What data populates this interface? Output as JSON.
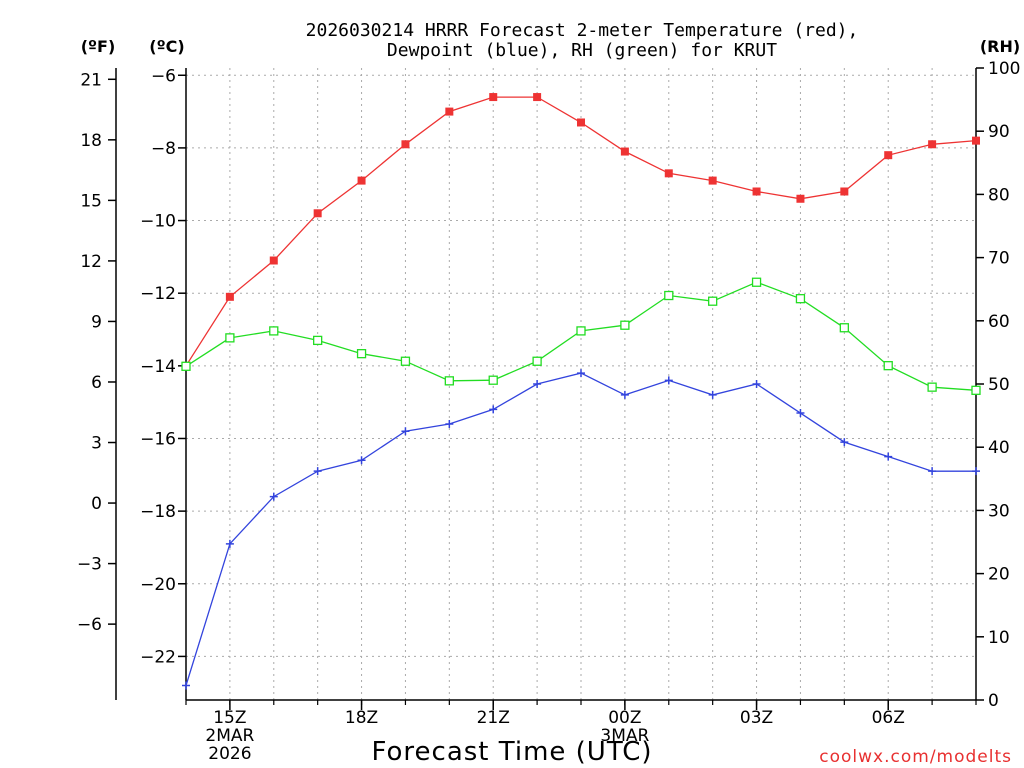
{
  "chart_data": {
    "type": "line",
    "title_line1": "2026030214 HRRR Forecast 2-meter Temperature (red),",
    "title_line2": "Dewpoint (blue), RH (green) for KRUT",
    "xlabel": "Forecast Time (UTC)",
    "credit": "coolwx.com/modelts",
    "unit_left_f": "(ºF)",
    "unit_left_c": "(ºC)",
    "unit_right": "(RH)",
    "x_hours": [
      14,
      15,
      16,
      17,
      18,
      19,
      20,
      21,
      22,
      23,
      24,
      25,
      26,
      27,
      28,
      29,
      30,
      31,
      32
    ],
    "x_range": [
      14,
      32
    ],
    "x_ticks": [
      {
        "hour": 15,
        "label": "15Z",
        "sub1": "2MAR",
        "sub2": "2026"
      },
      {
        "hour": 18,
        "label": "18Z",
        "sub1": "",
        "sub2": ""
      },
      {
        "hour": 21,
        "label": "21Z",
        "sub1": "",
        "sub2": ""
      },
      {
        "hour": 24,
        "label": "00Z",
        "sub1": "3MAR",
        "sub2": ""
      },
      {
        "hour": 27,
        "label": "03Z",
        "sub1": "",
        "sub2": ""
      },
      {
        "hour": 30,
        "label": "06Z",
        "sub1": "",
        "sub2": ""
      }
    ],
    "y_c_range": [
      -23.2,
      -5.8
    ],
    "y_c_ticks": [
      -6,
      -8,
      -10,
      -12,
      -14,
      -16,
      -18,
      -20,
      -22
    ],
    "y_c_tick_labels": [
      "−6",
      "−8",
      "−10",
      "−12",
      "−14",
      "−16",
      "−18",
      "−20",
      "−22"
    ],
    "y_f_ticks": [
      21,
      18,
      15,
      12,
      9,
      6,
      3,
      0,
      -3,
      -6
    ],
    "y_f_tick_labels": [
      "21",
      "18",
      "15",
      "12",
      "9",
      "6",
      "3",
      "0",
      "−3",
      "−6"
    ],
    "y_rh_range": [
      0,
      100
    ],
    "y_rh_ticks": [
      0,
      10,
      20,
      30,
      40,
      50,
      60,
      70,
      80,
      90,
      100
    ],
    "y_rh_tick_labels": [
      "0",
      "10",
      "20",
      "30",
      "40",
      "50",
      "60",
      "70",
      "80",
      "90",
      "100"
    ],
    "series": [
      {
        "name": "Temperature",
        "color": "#ee3333",
        "marker": "filled-square",
        "axis": "celsius",
        "values": [
          -14.0,
          -12.1,
          -11.1,
          -9.8,
          -8.9,
          -7.9,
          -7.0,
          -6.6,
          -6.6,
          -7.3,
          -8.1,
          -8.7,
          -8.9,
          -9.2,
          -9.4,
          -9.2,
          -8.2,
          -7.9,
          -7.8
        ]
      },
      {
        "name": "Dewpoint",
        "color": "#3344dd",
        "marker": "plus",
        "axis": "celsius",
        "values": [
          -22.8,
          -18.9,
          -17.6,
          -16.9,
          -16.6,
          -15.8,
          -15.6,
          -15.2,
          -14.5,
          -14.2,
          -14.8,
          -14.4,
          -14.8,
          -14.5,
          -15.3,
          -16.1,
          -16.5,
          -16.9,
          -16.9
        ]
      },
      {
        "name": "RH",
        "color": "#22dd22",
        "marker": "open-square",
        "axis": "rh",
        "values": [
          52.8,
          57.3,
          58.4,
          56.9,
          54.8,
          53.6,
          50.5,
          50.6,
          53.6,
          58.4,
          59.3,
          64.0,
          63.1,
          66.1,
          63.5,
          58.9,
          52.9,
          49.5,
          49.0
        ]
      }
    ]
  }
}
